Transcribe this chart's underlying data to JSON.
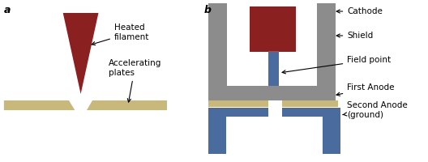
{
  "bg_color": "#ffffff",
  "dark_red": "#8B2020",
  "gray": "#8C8C8C",
  "tan": "#C8B87A",
  "blue": "#4A6B9E",
  "label_a": "a",
  "label_b": "b",
  "text_filament": "Heated\nfilament",
  "text_plates": "Accelerating\nplates",
  "text_cathode": "Cathode",
  "text_shield": "Shield",
  "text_field": "Field point",
  "text_anode1": "First Anode",
  "text_anode2": "Second Anode\n(ground)"
}
